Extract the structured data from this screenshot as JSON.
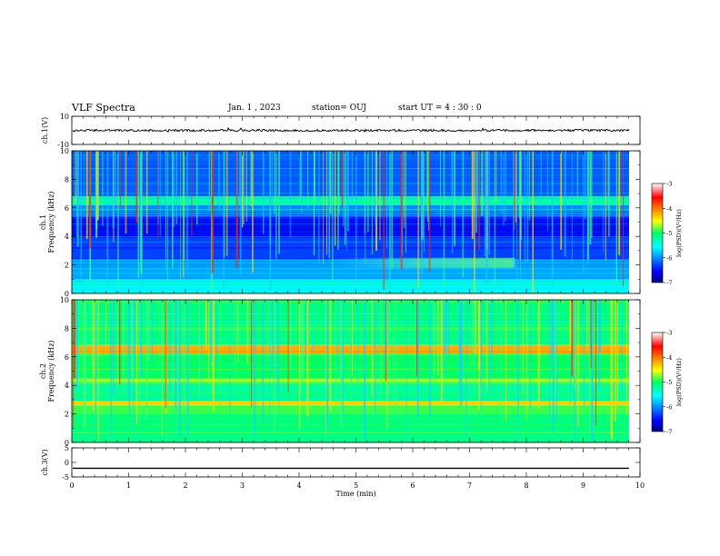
{
  "header": {
    "title": "VLF Spectra",
    "date": "Jan. 1 , 2023",
    "station": "station= OUJ",
    "start": "start UT = 4 : 30 : 0"
  },
  "chart_data": [
    {
      "type": "line",
      "ylabel": "ch.1(V)",
      "ylim": [
        -10,
        10
      ],
      "yticks": [
        10,
        -10
      ],
      "xlim": [
        0,
        10
      ],
      "note": "noisy waveform centred near 0 V, amplitude roughly ±1.5 V"
    },
    {
      "type": "heatmap",
      "ylabel": "ch.1 Frequency (kHz)",
      "ylim": [
        0,
        10
      ],
      "yticks": [
        0,
        2,
        4,
        6,
        8,
        10
      ],
      "xlim": [
        0,
        10
      ],
      "colorbar": {
        "label": "log(PSD)(V²/Hz)",
        "range": [
          -7,
          -3
        ],
        "ticks": [
          -3,
          -4,
          -5,
          -6,
          -7
        ]
      },
      "bands_khz": [
        {
          "from": 0.0,
          "to": 1.0,
          "log_psd": -5.6
        },
        {
          "from": 1.0,
          "to": 2.4,
          "log_psd": -5.9
        },
        {
          "from": 2.4,
          "to": 4.0,
          "log_psd": -6.3
        },
        {
          "from": 4.0,
          "to": 5.4,
          "log_psd": -6.5
        },
        {
          "from": 5.4,
          "to": 6.2,
          "log_psd": -6.0
        },
        {
          "from": 6.2,
          "to": 6.8,
          "log_psd": -5.2
        },
        {
          "from": 6.8,
          "to": 10.0,
          "log_psd": -6.2
        }
      ],
      "features": [
        {
          "kind": "emission",
          "x_min": [
            4.5,
            7.8
          ],
          "y_khz": [
            1.8,
            2.5
          ],
          "log_psd": -5.2
        }
      ]
    },
    {
      "type": "heatmap",
      "ylabel": "ch.2 Frequency (kHz)",
      "ylim": [
        0,
        10
      ],
      "yticks": [
        0,
        2,
        4,
        6,
        8,
        10
      ],
      "xlim": [
        0,
        10
      ],
      "colorbar": {
        "label": "log(PSD)(V²/Hz)",
        "range": [
          -7,
          -3
        ],
        "ticks": [
          -3,
          -4,
          -5,
          -6,
          -7
        ]
      },
      "bands_khz": [
        {
          "from": 0.0,
          "to": 2.0,
          "log_psd": -5.1
        },
        {
          "from": 2.0,
          "to": 2.6,
          "log_psd": -4.9
        },
        {
          "from": 2.6,
          "to": 2.9,
          "log_psd": -4.4
        },
        {
          "from": 2.9,
          "to": 4.2,
          "log_psd": -5.2
        },
        {
          "from": 4.2,
          "to": 4.5,
          "log_psd": -4.7
        },
        {
          "from": 4.5,
          "to": 6.2,
          "log_psd": -5.0
        },
        {
          "from": 6.2,
          "to": 6.8,
          "log_psd": -4.2
        },
        {
          "from": 6.8,
          "to": 10.0,
          "log_psd": -5.1
        }
      ]
    },
    {
      "type": "line",
      "ylabel": "ch.3(V)",
      "ylim": [
        -5,
        5
      ],
      "yticks": [
        5,
        0,
        -5
      ],
      "xlim": [
        0,
        10
      ],
      "xticks": [
        0,
        1,
        2,
        3,
        4,
        5,
        6,
        7,
        8,
        9,
        10
      ],
      "xlabel": "Time (min)",
      "value": -2
    }
  ]
}
